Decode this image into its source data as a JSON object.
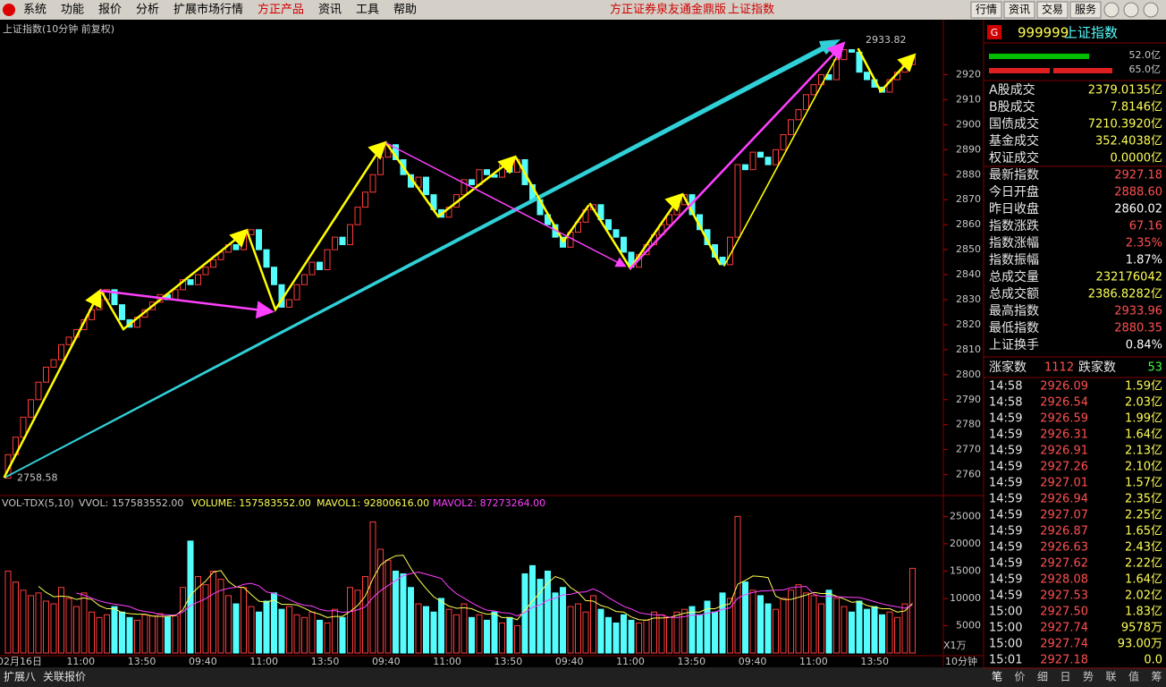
{
  "menu": {
    "items": [
      "系统",
      "功能",
      "报价",
      "分析",
      "扩展市场行情",
      "方正产品",
      "资讯",
      "工具",
      "帮助"
    ],
    "app_title": "方正证券泉友通金鼎版",
    "app_symbol": "上证指数",
    "buttons": [
      "行情",
      "资讯",
      "交易",
      "服务"
    ]
  },
  "chart_data": {
    "type": "candlestick",
    "title": "上证指数(10分钟 前复权)",
    "start_label": 2758.58,
    "high_label": 2933.82,
    "closes": [
      2768,
      2775,
      2783,
      2790,
      2797,
      2803,
      2806,
      2812,
      2815,
      2818,
      2822,
      2826,
      2830,
      2834,
      2828,
      2822,
      2819,
      2823,
      2826,
      2829,
      2832,
      2830,
      2834,
      2838,
      2836,
      2840,
      2843,
      2846,
      2849,
      2852,
      2850,
      2856,
      2858,
      2850,
      2843,
      2836,
      2827,
      2830,
      2836,
      2840,
      2845,
      2842,
      2850,
      2855,
      2852,
      2860,
      2867,
      2873,
      2880,
      2887,
      2892,
      2886,
      2880,
      2875,
      2879,
      2872,
      2866,
      2863,
      2867,
      2872,
      2878,
      2876,
      2882,
      2880,
      2879,
      2884,
      2881,
      2886,
      2876,
      2870,
      2864,
      2860,
      2855,
      2851,
      2857,
      2861,
      2866,
      2868,
      2862,
      2858,
      2855,
      2849,
      2843,
      2848,
      2852,
      2856,
      2860,
      2864,
      2868,
      2872,
      2864,
      2858,
      2852,
      2847,
      2844,
      2855,
      2884,
      2882,
      2889,
      2887,
      2884,
      2890,
      2896,
      2902,
      2906,
      2912,
      2916,
      2920,
      2918,
      2926,
      2930,
      2929,
      2921,
      2918,
      2915,
      2913,
      2918,
      2921,
      2924,
      2927.18
    ],
    "ylim": [
      2752,
      2942
    ],
    "yticks": [
      2760,
      2770,
      2780,
      2790,
      2800,
      2810,
      2820,
      2830,
      2840,
      2850,
      2860,
      2870,
      2880,
      2890,
      2900,
      2910,
      2920
    ],
    "up_color": "#ff3c3c",
    "down_color": "#54fcfc",
    "time_labels": [
      "02月16日",
      "11:00",
      "13:50",
      "09:40",
      "11:00",
      "13:50",
      "09:40",
      "11:00",
      "13:50",
      "09:40",
      "11:00",
      "13:50",
      "09:40",
      "11:00",
      "13:50"
    ],
    "volume": {
      "legend": [
        "VOL-TDX(5,10)",
        "VVOL: 157583552.00",
        "VOLUME: 157583552.00",
        "MAVOL1: 92800616.00",
        "MAVOL2: 87273264.00"
      ],
      "values": [
        15000,
        13000,
        11500,
        10500,
        11000,
        9500,
        9000,
        12000,
        10000,
        8500,
        11000,
        7500,
        6500,
        7000,
        8500,
        7500,
        6500,
        6000,
        7000,
        6800,
        7200,
        6600,
        6800,
        12000,
        20500,
        14000,
        12500,
        15000,
        13500,
        10500,
        9000,
        12000,
        8500,
        7500,
        9500,
        11000,
        8000,
        8500,
        7000,
        6500,
        7500,
        6000,
        5500,
        8000,
        6500,
        12000,
        11500,
        14000,
        24000,
        19000,
        17000,
        15000,
        14500,
        12000,
        9000,
        8500,
        7500,
        10000,
        8000,
        7000,
        9000,
        6500,
        7000,
        6000,
        7500,
        5500,
        6500,
        5000,
        14500,
        16000,
        13500,
        15000,
        11000,
        12000,
        8500,
        9000,
        7500,
        10500,
        8000,
        6500,
        5500,
        7000,
        6000,
        5500,
        6000,
        7500,
        7000,
        6500,
        7500,
        8000,
        8500,
        7000,
        9500,
        7500,
        11000,
        10000,
        25000,
        13000,
        11500,
        10500,
        9000,
        8000,
        10000,
        11500,
        12500,
        11000,
        10500,
        9000,
        11500,
        10000,
        8500,
        7500,
        9500,
        8000,
        8500,
        7000,
        7500,
        6500,
        9000,
        15500
      ],
      "ylim": [
        0,
        28500
      ],
      "yticks": [
        5000,
        10000,
        15000,
        20000,
        25000
      ],
      "unit": "X1万",
      "period": "10分钟"
    }
  },
  "panel": {
    "code": "999999",
    "name": "上证指数",
    "icon": "G",
    "bar_labels": [
      "52.0亿",
      "65.0亿"
    ],
    "stats": [
      {
        "label": "A股成交",
        "value": "2379.0135亿",
        "color": "#ffff54"
      },
      {
        "label": "B股成交",
        "value": "7.8146亿",
        "color": "#ffff54"
      },
      {
        "label": "国债成交",
        "value": "7210.3920亿",
        "color": "#ffff54"
      },
      {
        "label": "基金成交",
        "value": "352.4038亿",
        "color": "#ffff54"
      },
      {
        "label": "权证成交",
        "value": "0.0000亿",
        "color": "#ffff54"
      },
      {
        "label": "最新指数",
        "value": "2927.18",
        "color": "#ff5050"
      },
      {
        "label": "今日开盘",
        "value": "2888.60",
        "color": "#ff5050"
      },
      {
        "label": "昨日收盘",
        "value": "2860.02",
        "color": "#ffffff"
      },
      {
        "label": "指数涨跌",
        "value": "67.16",
        "color": "#ff5050"
      },
      {
        "label": "指数涨幅",
        "value": "2.35%",
        "color": "#ff5050"
      },
      {
        "label": "指数振幅",
        "value": "1.87%",
        "color": "#ffffff"
      },
      {
        "label": "总成交量",
        "value": "232176042",
        "color": "#ffff54"
      },
      {
        "label": "总成交额",
        "value": "2386.8282亿",
        "color": "#ffff54"
      },
      {
        "label": "最高指数",
        "value": "2933.96",
        "color": "#ff5050"
      },
      {
        "label": "最低指数",
        "value": "2880.35",
        "color": "#ff5050"
      },
      {
        "label": "上证换手",
        "value": "0.84%",
        "color": "#ffffff"
      }
    ],
    "rise_label": "涨家数",
    "rise": "1112",
    "fall_label": "跌家数",
    "fall": "53",
    "ticks": [
      [
        "14:58",
        "2926.09",
        "1.59亿"
      ],
      [
        "14:58",
        "2926.54",
        "2.03亿"
      ],
      [
        "14:59",
        "2926.59",
        "1.99亿"
      ],
      [
        "14:59",
        "2926.31",
        "1.64亿"
      ],
      [
        "14:59",
        "2926.91",
        "2.13亿"
      ],
      [
        "14:59",
        "2927.26",
        "2.10亿"
      ],
      [
        "14:59",
        "2927.01",
        "1.57亿"
      ],
      [
        "14:59",
        "2926.94",
        "2.35亿"
      ],
      [
        "14:59",
        "2927.07",
        "2.25亿"
      ],
      [
        "14:59",
        "2926.87",
        "1.65亿"
      ],
      [
        "14:59",
        "2926.63",
        "2.43亿"
      ],
      [
        "14:59",
        "2927.62",
        "2.22亿"
      ],
      [
        "14:59",
        "2928.08",
        "1.64亿"
      ],
      [
        "14:59",
        "2927.53",
        "2.02亿"
      ],
      [
        "15:00",
        "2927.50",
        "1.83亿"
      ],
      [
        "15:00",
        "2927.74",
        "9578万"
      ],
      [
        "15:00",
        "2927.74",
        "93.00万"
      ],
      [
        "15:01",
        "2927.18",
        "0.0"
      ]
    ],
    "tabs": [
      "笔",
      "价",
      "细",
      "日",
      "势",
      "联",
      "值",
      "筹"
    ]
  },
  "status": {
    "tabs": [
      "扩展八",
      "关联报价"
    ]
  }
}
